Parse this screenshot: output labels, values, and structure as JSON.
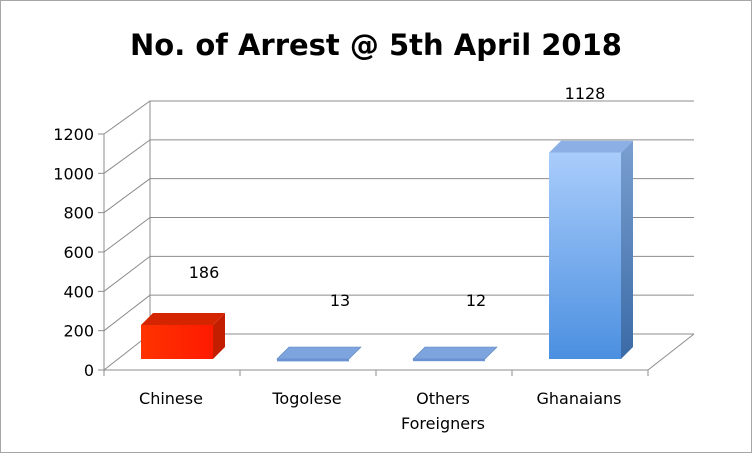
{
  "chart_data": {
    "type": "bar",
    "title": "No. of Arrest @ 5th April 2018",
    "categories": [
      [
        "Chinese"
      ],
      [
        "Togolese"
      ],
      [
        "Others",
        "Foreigners"
      ],
      [
        "Ghanaians"
      ]
    ],
    "values": [
      186,
      13,
      12,
      1128
    ],
    "data_labels": [
      "186",
      "13",
      "12",
      "1128"
    ],
    "ylim": [
      0,
      1200
    ],
    "yticks": [
      0,
      200,
      400,
      600,
      800,
      1000,
      1200
    ],
    "grid": true,
    "legend": "none",
    "colors": {
      "Chinese": "#ff2a00",
      "others": "#6d97d8",
      "Ghanaians": "#5d9ae6"
    }
  }
}
